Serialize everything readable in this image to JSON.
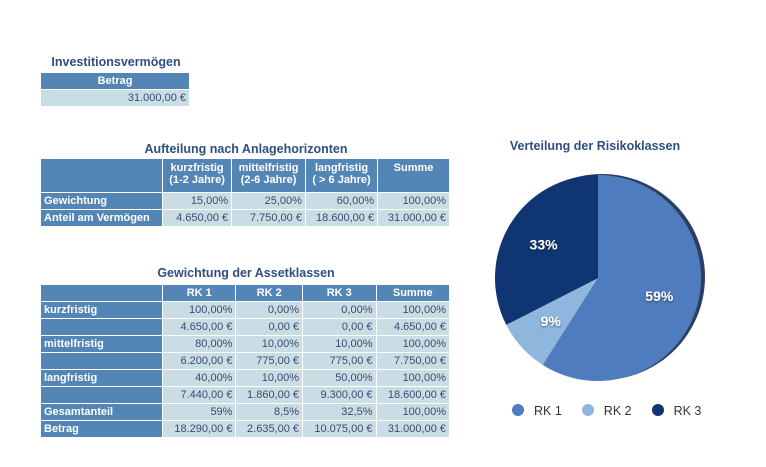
{
  "invest": {
    "title": "Investitionsvermögen",
    "header": "Betrag",
    "value": "31.000,00 €"
  },
  "horizon": {
    "title": "Aufteilung nach Anlagehorizonten",
    "headers": [
      [
        "kurzfristig",
        "(1-2 Jahre)"
      ],
      [
        "mittelfristig",
        "(2-6 Jahre)"
      ],
      [
        "langfristig",
        "( > 6 Jahre)"
      ],
      [
        "Summe",
        ""
      ]
    ],
    "rows": [
      {
        "label": "Gewichtung",
        "values": [
          "15,00%",
          "25,00%",
          "60,00%",
          "100,00%"
        ]
      },
      {
        "label": "Anteil am Vermögen",
        "values": [
          "4.650,00 €",
          "7.750,00 €",
          "18.600,00 €",
          "31.000,00 €"
        ]
      }
    ]
  },
  "assets": {
    "title": "Gewichtung der Assetklassen",
    "headers": [
      "RK 1",
      "RK 2",
      "RK 3",
      "Summe"
    ],
    "rows": [
      {
        "label": "kurzfristig",
        "values": [
          "100,00%",
          "0,00%",
          "0,00%",
          "100,00%"
        ]
      },
      {
        "label": "",
        "values": [
          "4.650,00 €",
          "0,00 €",
          "0,00 €",
          "4.650,00 €"
        ]
      },
      {
        "label": "mittelfristig",
        "values": [
          "80,00%",
          "10,00%",
          "10,00%",
          "100,00%"
        ]
      },
      {
        "label": "",
        "values": [
          "6.200,00 €",
          "775,00 €",
          "775,00 €",
          "7.750,00 €"
        ]
      },
      {
        "label": "langfristig",
        "values": [
          "40,00%",
          "10,00%",
          "50,00%",
          "100,00%"
        ]
      },
      {
        "label": "",
        "values": [
          "7.440,00 €",
          "1.860,00 €",
          "9.300,00 €",
          "18.600,00 €"
        ]
      },
      {
        "label": "Gesamtanteil",
        "values": [
          "59%",
          "8,5%",
          "32,5%",
          "100,00%"
        ]
      },
      {
        "label": "Betrag",
        "values": [
          "18.290,00 €",
          "2.635,00 €",
          "10.075,00 €",
          "31.000,00 €"
        ]
      }
    ]
  },
  "chart_data": {
    "type": "pie",
    "title": "Verteilung der Risikoklassen",
    "legend": "bottom",
    "slices": [
      {
        "name": "RK 1",
        "value": 59,
        "label": "59%",
        "color": "#4f7bbf"
      },
      {
        "name": "RK 2",
        "value": 8.5,
        "label": "9%",
        "color": "#8fb6dc"
      },
      {
        "name": "RK 3",
        "value": 32.5,
        "label": "33%",
        "color": "#0f3672"
      }
    ]
  }
}
